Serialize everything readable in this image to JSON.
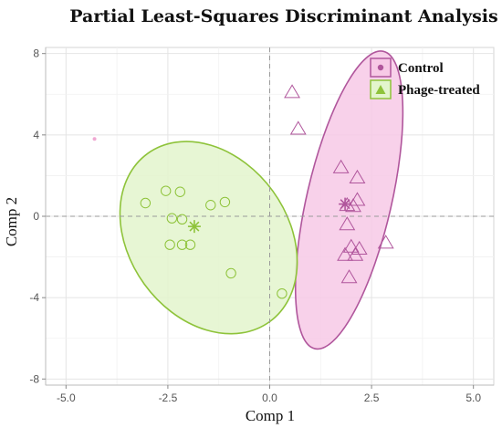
{
  "chart_data": {
    "type": "scatter",
    "title": "Partial Least-Squares Discriminant Analysis",
    "xlabel": "Comp 1",
    "ylabel": "Comp 2",
    "xlim": [
      -5.5,
      5.5
    ],
    "ylim": [
      -8.3,
      8.3
    ],
    "xticks": [
      -5.0,
      -2.5,
      0.0,
      2.5,
      5.0
    ],
    "xtick_labels": [
      "-5.0",
      "-2.5",
      "0.0",
      "2.5",
      "5.0"
    ],
    "yticks": [
      -8,
      -4,
      0,
      4,
      8
    ],
    "ytick_labels": [
      "-8",
      "-4",
      "0",
      "4",
      "8"
    ],
    "grid": true,
    "reference_lines": {
      "x": 0,
      "y": 0,
      "style": "dashed"
    },
    "legend_position": "top-right",
    "series": [
      {
        "name": "Control",
        "marker": "triangle",
        "color": "#b0569c",
        "fill": "#f7c9e6",
        "points": [
          [
            0.55,
            6.1
          ],
          [
            0.7,
            4.3
          ],
          [
            1.75,
            2.4
          ],
          [
            2.15,
            1.9
          ],
          [
            1.9,
            0.55
          ],
          [
            2.15,
            0.8
          ],
          [
            2.05,
            0.5
          ],
          [
            1.9,
            -0.4
          ],
          [
            2.2,
            -1.6
          ],
          [
            2.0,
            -1.5
          ],
          [
            2.85,
            -1.3
          ],
          [
            1.85,
            -1.9
          ],
          [
            2.1,
            -1.9
          ],
          [
            1.95,
            -3.0
          ]
        ],
        "centroid": [
          1.85,
          0.6
        ],
        "ellipse": {
          "cx": 1.95,
          "cy": 0.8,
          "rx": 1.04,
          "ry": 7.5,
          "angle_deg": 13
        }
      },
      {
        "name": "Phage-treated",
        "marker": "circle",
        "color": "#8ec33a",
        "fill": "#e3f5cd",
        "points": [
          [
            -3.05,
            0.65
          ],
          [
            -2.55,
            1.25
          ],
          [
            -2.2,
            1.2
          ],
          [
            -1.1,
            0.7
          ],
          [
            -1.45,
            0.55
          ],
          [
            -2.4,
            -0.1
          ],
          [
            -2.15,
            -0.15
          ],
          [
            -2.45,
            -1.4
          ],
          [
            -2.15,
            -1.4
          ],
          [
            -1.95,
            -1.4
          ],
          [
            -0.95,
            -2.8
          ],
          [
            0.3,
            -3.8
          ]
        ],
        "centroid": [
          -1.85,
          -0.5
        ],
        "ellipse": {
          "cx": -1.5,
          "cy": -1.05,
          "rx": 2.55,
          "ry": 3.9,
          "angle_deg": 54
        }
      }
    ]
  },
  "extra_marks": [
    {
      "type": "dot",
      "x": -4.3,
      "y": 3.8,
      "color": "#f0a8d2"
    }
  ]
}
